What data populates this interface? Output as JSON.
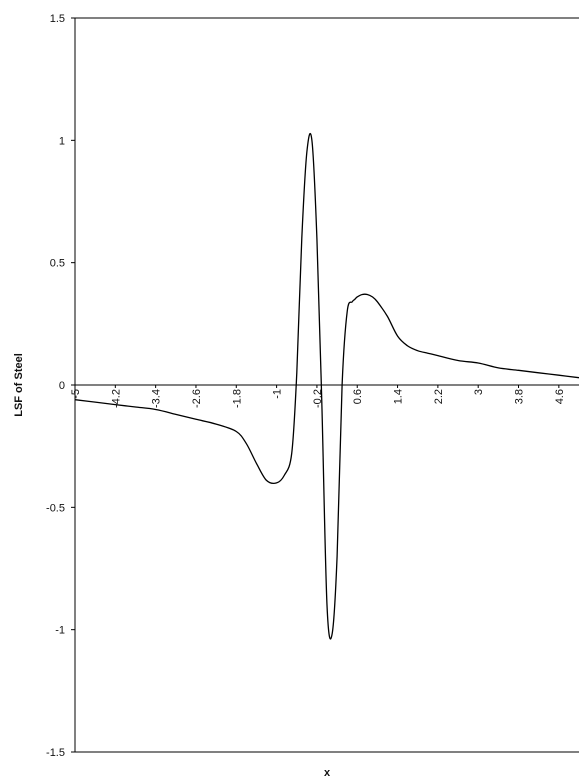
{
  "chart_data": {
    "type": "line",
    "title": "",
    "xlabel": "x",
    "ylabel": "LSF of Steel",
    "ylim": [
      -1.5,
      1.5
    ],
    "xlim": [
      -5,
      5
    ],
    "y_ticks": [
      "1.5",
      "1",
      "0.5",
      "0",
      "-0.5",
      "-1",
      "-1.5"
    ],
    "y_tick_values": [
      1.5,
      1,
      0.5,
      0,
      -0.5,
      -1,
      -1.5
    ],
    "x_ticks": [
      "-5",
      "-4.2",
      "-3.4",
      "-2.6",
      "-1.8",
      "-1",
      "-0.2",
      "0.6",
      "1.4",
      "2.2",
      "3",
      "3.8",
      "4.6"
    ],
    "x_tick_values": [
      -5,
      -4.2,
      -3.4,
      -2.6,
      -1.8,
      -1,
      -0.2,
      0.6,
      1.4,
      2.2,
      3,
      3.8,
      4.6
    ],
    "grid": false,
    "legend": "none",
    "line_color": "#000000",
    "series": [
      {
        "x": [
          -5,
          -4.6,
          -4.2,
          -3.8,
          -3.4,
          -3.0,
          -2.6,
          -2.2,
          -1.8,
          -1.6,
          -1.4,
          -1.2,
          -1.0,
          -0.85,
          -0.7,
          -0.6,
          -0.5,
          -0.4,
          -0.3,
          -0.2,
          -0.1,
          0.0,
          0.1,
          0.2,
          0.3,
          0.4,
          0.5,
          0.55,
          0.6,
          0.7,
          0.8,
          0.9,
          1.0,
          1.2,
          1.4,
          1.6,
          1.8,
          2.0,
          2.2,
          2.6,
          3.0,
          3.4,
          3.8,
          4.2,
          4.6,
          5.0
        ],
        "y": [
          -0.06,
          -0.07,
          -0.08,
          -0.09,
          -0.1,
          -0.12,
          -0.14,
          -0.16,
          -0.19,
          -0.24,
          -0.32,
          -0.39,
          -0.4,
          -0.37,
          -0.28,
          0.05,
          0.6,
          0.95,
          1.0,
          0.6,
          -0.1,
          -0.9,
          -1.02,
          -0.7,
          0.0,
          0.3,
          0.34,
          0.35,
          0.36,
          0.37,
          0.37,
          0.36,
          0.34,
          0.28,
          0.2,
          0.16,
          0.14,
          0.13,
          0.12,
          0.1,
          0.09,
          0.07,
          0.06,
          0.05,
          0.04,
          0.03
        ]
      }
    ]
  }
}
